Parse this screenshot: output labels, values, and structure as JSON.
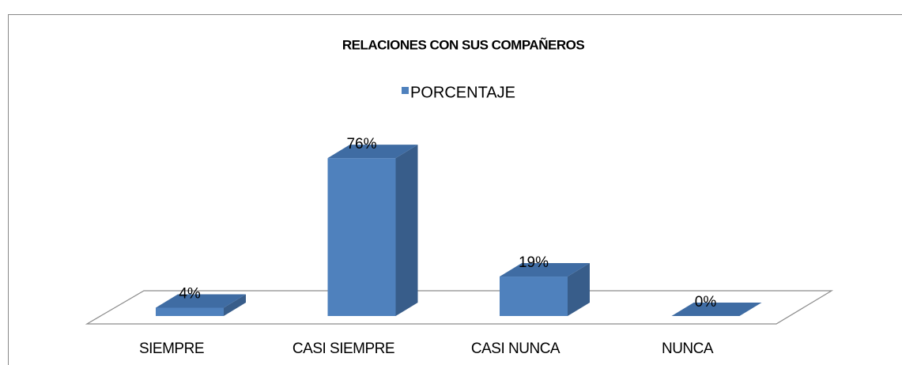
{
  "chart_data": {
    "type": "bar3d",
    "title": "RELACIONES CON SUS  COMPAÑEROS",
    "categories": [
      "SIEMPRE",
      "CASI SIEMPRE",
      "CASI NUNCA",
      "NUNCA"
    ],
    "series": [
      {
        "name": "PORCENTAJE",
        "color": "#4f81bd",
        "values": [
          4,
          76,
          19,
          0
        ],
        "value_labels": [
          "4%",
          "76%",
          "19%",
          "0%"
        ]
      }
    ],
    "legend": "top"
  }
}
